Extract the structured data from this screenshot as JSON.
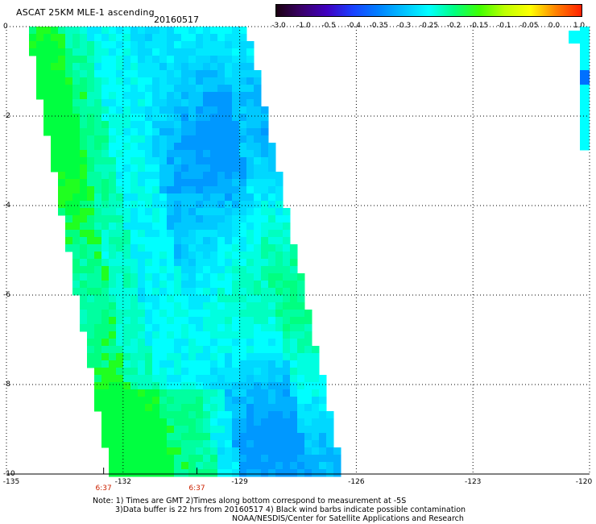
{
  "header": {
    "title": "ASCAT 25KM MLE-1 ascending",
    "date": "20160517"
  },
  "colorbar": {
    "labels": [
      "-3.0",
      "-1.0",
      "-0.5",
      "-0.4",
      "-0.35",
      "-0.3",
      "-0.25",
      "-0.2",
      "-0.15",
      "-0.1",
      "-0.05",
      "0.0",
      "1.0"
    ],
    "colors": [
      "#1a0010",
      "#3a006a",
      "#4000c0",
      "#1a40ff",
      "#0080ff",
      "#00c0ff",
      "#00ffff",
      "#00ff80",
      "#40ff00",
      "#c0ff00",
      "#ffff00",
      "#ff8000",
      "#ff2000"
    ]
  },
  "axes": {
    "x_ticks": [
      "-135",
      "-132",
      "-129",
      "-126",
      "-123",
      "-120"
    ],
    "y_ticks": [
      "0",
      "-2",
      "-4",
      "-6",
      "-8",
      "-10"
    ],
    "lon_range": [
      -135,
      -120
    ],
    "lat_range": [
      -10,
      0
    ],
    "gridlines": true
  },
  "pass_times": [
    {
      "label": "6:37",
      "lon": -132.5
    },
    {
      "label": "6:37",
      "lon": -130.1
    }
  ],
  "notes": {
    "line1": "Note: 1) Times are GMT 2)Times along bottom correspond to measurement at -5S",
    "line2": "3)Data buffer is 22 hrs from 20160517 4) Black wind barbs indicate possible contamination",
    "line3": "NOAA/NESDIS/Center for Satellite Applications and Research"
  }
}
